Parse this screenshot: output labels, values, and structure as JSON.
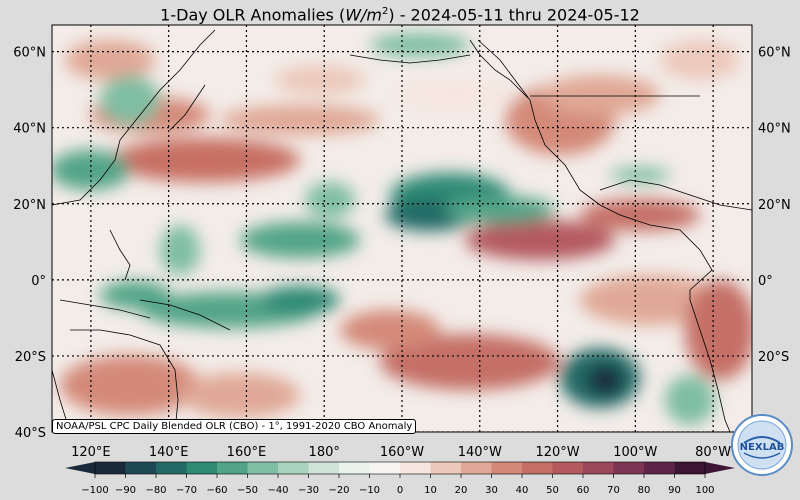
{
  "title": {
    "prefix": "1-Day OLR Anomalies (",
    "unit_base": "W/m",
    "unit_exp": "2",
    "suffix": ") - 2024-05-11 thru 2024-05-12"
  },
  "lat_labels": [
    {
      "lat": 60,
      "text": "60°N"
    },
    {
      "lat": 40,
      "text": "40°N"
    },
    {
      "lat": 20,
      "text": "20°N"
    },
    {
      "lat": 0,
      "text": "0°"
    },
    {
      "lat": -20,
      "text": "20°S"
    },
    {
      "lat": -40,
      "text": "40°S"
    }
  ],
  "lon_labels": [
    {
      "lon": 120,
      "text": "120°E"
    },
    {
      "lon": 140,
      "text": "140°E"
    },
    {
      "lon": 160,
      "text": "160°E"
    },
    {
      "lon": 180,
      "text": "180°"
    },
    {
      "lon": 200,
      "text": "160°W"
    },
    {
      "lon": 220,
      "text": "140°W"
    },
    {
      "lon": 240,
      "text": "120°W"
    },
    {
      "lon": 260,
      "text": "100°W"
    },
    {
      "lon": 280,
      "text": "80°W"
    }
  ],
  "extent": {
    "lon_min": 110,
    "lon_max": 290,
    "lat_min": -40,
    "lat_max": 67
  },
  "credit": "NOAA/PSL CPC Daily Blended OLR (CBO) - 1°, 1991-2020 CBO Anomaly",
  "logo_text": "NEXLAB",
  "colorbar": {
    "ticks": [
      -100,
      -90,
      -80,
      -70,
      -60,
      -50,
      -40,
      -30,
      -20,
      -10,
      0,
      10,
      20,
      30,
      40,
      50,
      60,
      70,
      80,
      90,
      100
    ],
    "tick_labels": [
      "−100",
      "−90",
      "−80",
      "−70",
      "−60",
      "−50",
      "−40",
      "−30",
      "−20",
      "−10",
      "0",
      "10",
      "20",
      "30",
      "40",
      "50",
      "60",
      "70",
      "80",
      "90",
      "100"
    ],
    "colors": [
      "#1b2a3a",
      "#1f4a55",
      "#236a66",
      "#2f8a74",
      "#52a488",
      "#7fbea2",
      "#aad3bd",
      "#cfe4d6",
      "#e8f1ea",
      "#f7f5f3",
      "#f6e6df",
      "#ecc9bb",
      "#e0a896",
      "#d48a79",
      "#c56f66",
      "#b45a5e",
      "#9a4759",
      "#7d3554",
      "#5e2448",
      "#3d1535"
    ]
  },
  "anomaly_features": [
    {
      "lon": 152,
      "lat": 33,
      "value": 50
    },
    {
      "lon": 225,
      "lat": 40,
      "value": 30
    },
    {
      "lon": 245,
      "lat": 12,
      "value": 50
    },
    {
      "lon": 210,
      "lat": 18,
      "value": -60
    },
    {
      "lon": 182,
      "lat": 12,
      "value": -40
    },
    {
      "lon": 165,
      "lat": -5,
      "value": -40
    },
    {
      "lon": 265,
      "lat": -28,
      "value": -80
    },
    {
      "lon": 210,
      "lat": -20,
      "value": 50
    },
    {
      "lon": 125,
      "lat": 30,
      "value": -40
    },
    {
      "lon": 235,
      "lat": -10,
      "value": 20
    }
  ]
}
